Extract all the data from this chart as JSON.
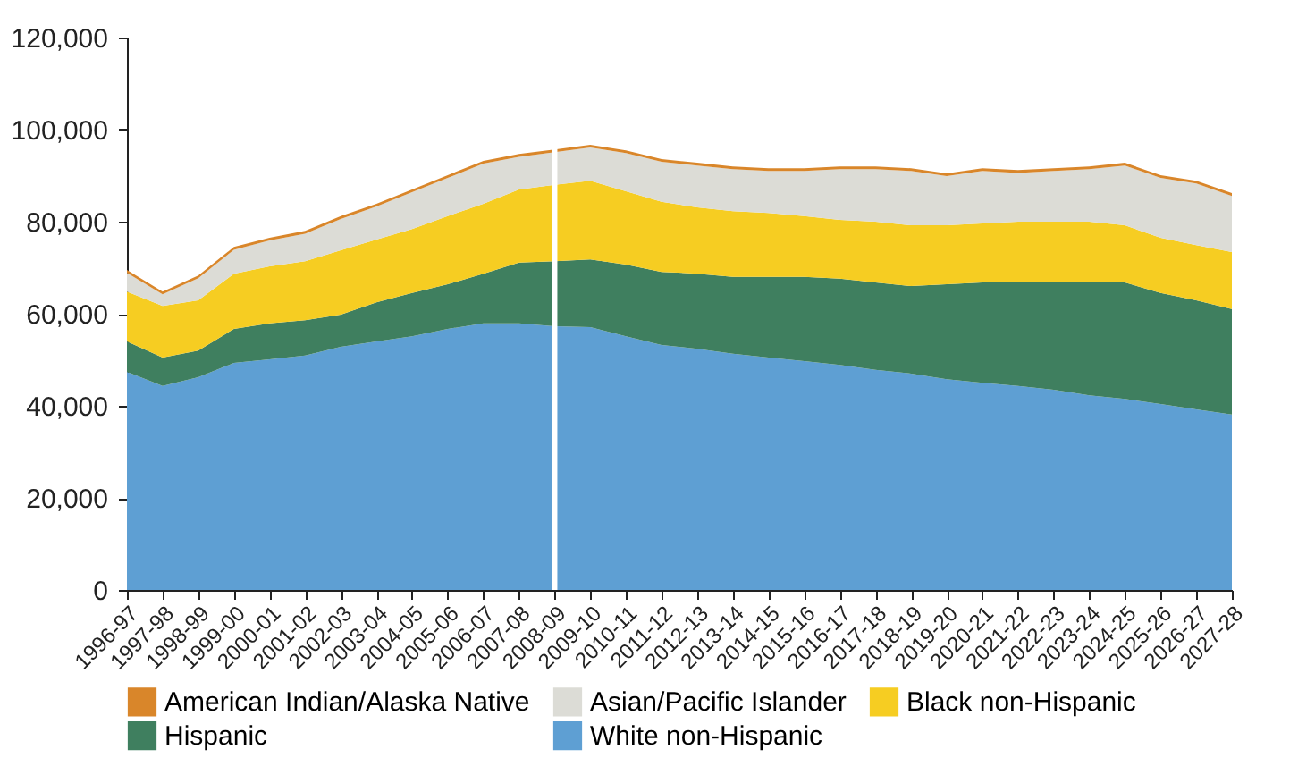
{
  "chart_data": {
    "type": "area",
    "stacked": true,
    "categories": [
      "1996-97",
      "1997-98",
      "1998-99",
      "1999-00",
      "2000-01",
      "2001-02",
      "2002-03",
      "2003-04",
      "2004-05",
      "2005-06",
      "2006-07",
      "2007-08",
      "2008-09",
      "2009-10",
      "2010-11",
      "2011-12",
      "2012-13",
      "2013-14",
      "2014-15",
      "2015-16",
      "2016-17",
      "2017-18",
      "2018-19",
      "2019-20",
      "2020-21",
      "2021-22",
      "2022-23",
      "2023-24",
      "2024-25",
      "2025-26",
      "2026-27",
      "2027-28"
    ],
    "series": [
      {
        "name": "White non-Hispanic",
        "color": "#5e9fd3",
        "values": [
          47400,
          44300,
          46200,
          49300,
          50100,
          50900,
          52800,
          54000,
          55100,
          56700,
          57900,
          57900,
          57300,
          57100,
          55100,
          53200,
          52400,
          51300,
          50500,
          49700,
          48900,
          47800,
          47000,
          45800,
          45000,
          44300,
          43500,
          42300,
          41500,
          40400,
          39200,
          38100
        ]
      },
      {
        "name": "Hispanic",
        "color": "#3f7f5f",
        "values": [
          6600,
          6200,
          5800,
          7400,
          7800,
          7700,
          7000,
          8500,
          9400,
          9700,
          10800,
          13200,
          14100,
          14700,
          15600,
          15900,
          16300,
          16700,
          17500,
          18300,
          18700,
          19000,
          19000,
          20600,
          21800,
          22500,
          23300,
          24500,
          25300,
          24100,
          23700,
          22900
        ]
      },
      {
        "name": "Black non-Hispanic",
        "color": "#f6cd22",
        "values": [
          10800,
          11200,
          10900,
          12000,
          12400,
          12800,
          14000,
          13600,
          13900,
          14800,
          15200,
          15900,
          16600,
          17100,
          15900,
          15200,
          14400,
          14300,
          13900,
          13200,
          12800,
          13200,
          13200,
          12800,
          12800,
          13200,
          13200,
          13200,
          12400,
          12000,
          12000,
          12400
        ]
      },
      {
        "name": "Asian/Pacific Islander",
        "color": "#dcdcd6",
        "values": [
          4100,
          2500,
          4800,
          5200,
          5600,
          6000,
          6800,
          7200,
          8000,
          8300,
          8700,
          7100,
          7100,
          7200,
          8300,
          8700,
          9100,
          9100,
          9100,
          9800,
          11000,
          11400,
          11800,
          10700,
          11400,
          10600,
          11000,
          11400,
          13000,
          13000,
          13400,
          12200
        ]
      },
      {
        "name": "American Indian/Alaska Native",
        "color": "#d9862a",
        "values": [
          600,
          600,
          600,
          600,
          600,
          600,
          600,
          600,
          600,
          600,
          600,
          600,
          600,
          600,
          600,
          600,
          600,
          600,
          600,
          600,
          600,
          600,
          600,
          600,
          600,
          600,
          600,
          600,
          600,
          600,
          600,
          600
        ]
      }
    ],
    "ylim": [
      0,
      120000
    ],
    "yticks": [
      0,
      {
        "value": 20000,
        "label": "20,000"
      },
      {
        "value": 40000,
        "label": "40,000"
      },
      {
        "value": 60000,
        "label": "60,000"
      },
      {
        "value": 80000,
        "label": "80,000"
      },
      {
        "value": 100000,
        "label": "100,000"
      },
      {
        "value": 120000,
        "label": "120,000"
      }
    ],
    "ref_lines": [
      {
        "axis": "x",
        "value": "2008-09",
        "color": "#ffffff"
      }
    ],
    "grid": false,
    "legend": "bottom"
  }
}
